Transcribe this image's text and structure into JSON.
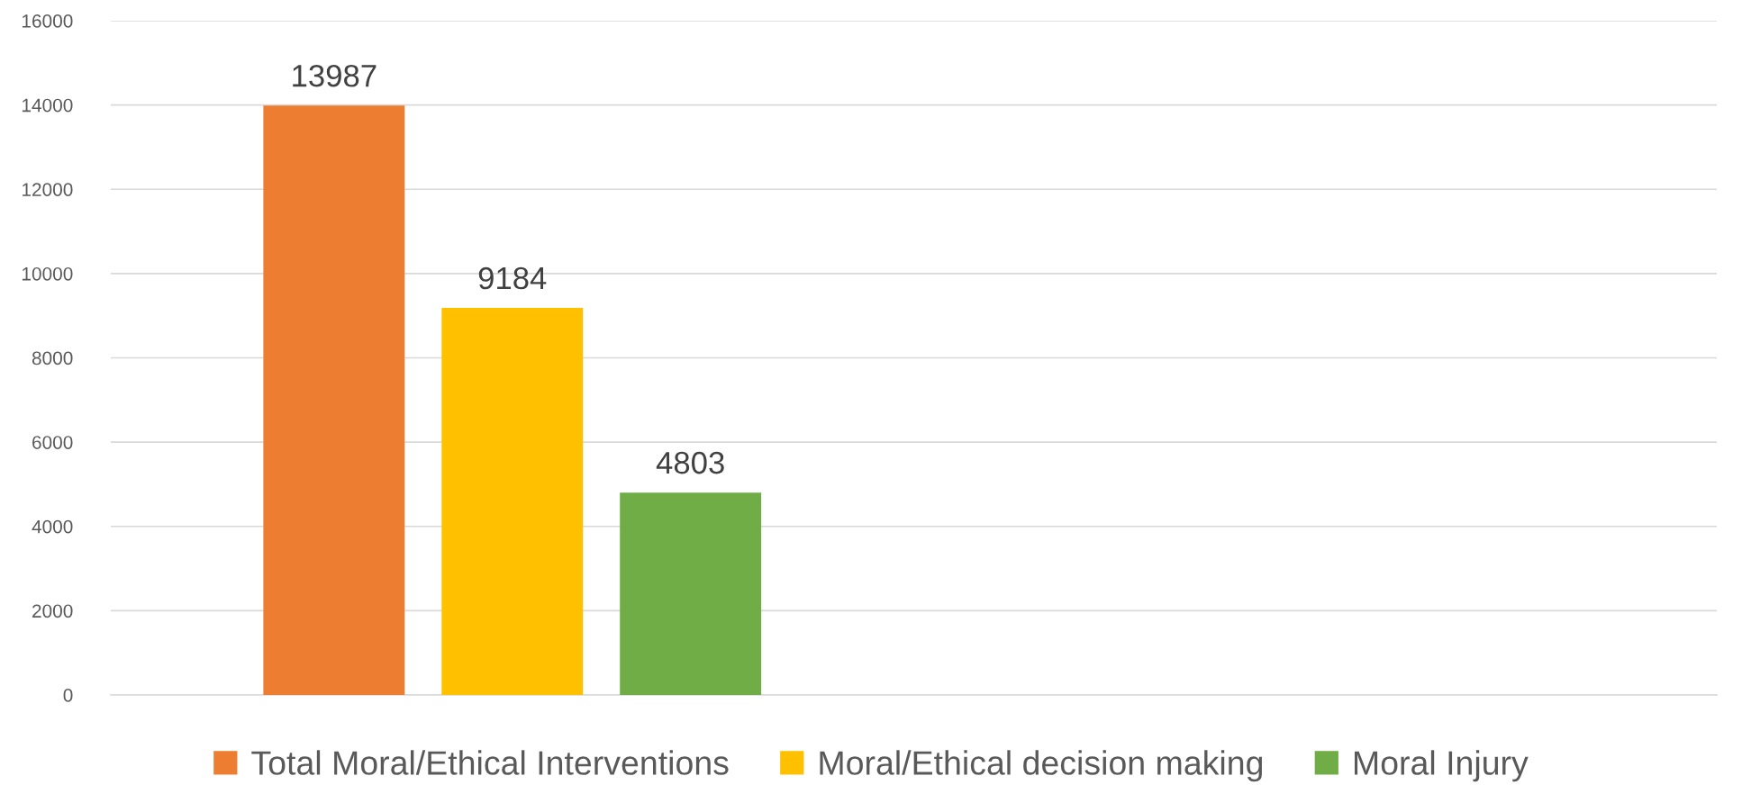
{
  "chart_data": {
    "type": "bar",
    "categories": [
      null,
      null
    ],
    "series": [
      {
        "name": "Total Moral/Ethical Interventions",
        "color": "#ed7d31",
        "values": [
          13987,
          null
        ]
      },
      {
        "name": "Moral/Ethical decision making",
        "color": "#ffc000",
        "values": [
          9184,
          null
        ]
      },
      {
        "name": "Moral Injury",
        "color": "#70ad47",
        "values": [
          4803,
          null
        ]
      }
    ],
    "ylim": [
      0,
      16000
    ],
    "yticks": [
      0,
      2000,
      4000,
      6000,
      8000,
      10000,
      12000,
      14000,
      16000
    ],
    "grid": "y",
    "legend": "bottom",
    "data_labels": true
  }
}
